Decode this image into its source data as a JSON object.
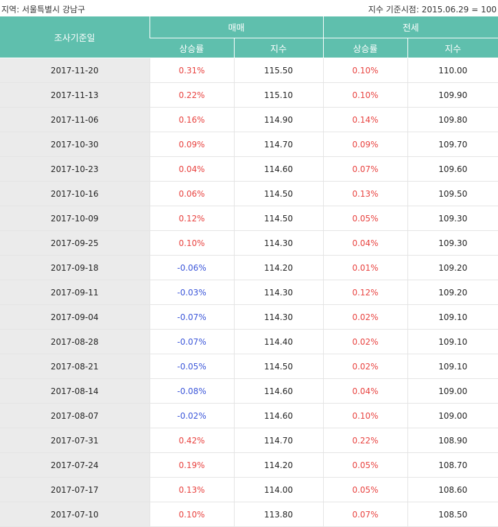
{
  "header": {
    "region": "지역: 서울특별시 강남구",
    "base": "지수 기준시점: 2015.06.29 = 100"
  },
  "columns": {
    "date": "조사기준일",
    "sale": "매매",
    "jeonse": "전세",
    "rate": "상승률",
    "index": "지수"
  },
  "colors": {
    "header_bg": "#5fbfad",
    "positive": "#e8413e",
    "negative": "#3a55d9",
    "date_bg": "#ebebeb"
  },
  "rows": [
    {
      "date": "2017-11-20",
      "sale_rate": "0.31%",
      "sale_index": "115.50",
      "jeonse_rate": "0.10%",
      "jeonse_index": "110.00"
    },
    {
      "date": "2017-11-13",
      "sale_rate": "0.22%",
      "sale_index": "115.10",
      "jeonse_rate": "0.10%",
      "jeonse_index": "109.90"
    },
    {
      "date": "2017-11-06",
      "sale_rate": "0.16%",
      "sale_index": "114.90",
      "jeonse_rate": "0.14%",
      "jeonse_index": "109.80"
    },
    {
      "date": "2017-10-30",
      "sale_rate": "0.09%",
      "sale_index": "114.70",
      "jeonse_rate": "0.09%",
      "jeonse_index": "109.70"
    },
    {
      "date": "2017-10-23",
      "sale_rate": "0.04%",
      "sale_index": "114.60",
      "jeonse_rate": "0.07%",
      "jeonse_index": "109.60"
    },
    {
      "date": "2017-10-16",
      "sale_rate": "0.06%",
      "sale_index": "114.50",
      "jeonse_rate": "0.13%",
      "jeonse_index": "109.50"
    },
    {
      "date": "2017-10-09",
      "sale_rate": "0.12%",
      "sale_index": "114.50",
      "jeonse_rate": "0.05%",
      "jeonse_index": "109.30"
    },
    {
      "date": "2017-09-25",
      "sale_rate": "0.10%",
      "sale_index": "114.30",
      "jeonse_rate": "0.04%",
      "jeonse_index": "109.30"
    },
    {
      "date": "2017-09-18",
      "sale_rate": "-0.06%",
      "sale_index": "114.20",
      "jeonse_rate": "0.01%",
      "jeonse_index": "109.20"
    },
    {
      "date": "2017-09-11",
      "sale_rate": "-0.03%",
      "sale_index": "114.30",
      "jeonse_rate": "0.12%",
      "jeonse_index": "109.20"
    },
    {
      "date": "2017-09-04",
      "sale_rate": "-0.07%",
      "sale_index": "114.30",
      "jeonse_rate": "0.02%",
      "jeonse_index": "109.10"
    },
    {
      "date": "2017-08-28",
      "sale_rate": "-0.07%",
      "sale_index": "114.40",
      "jeonse_rate": "0.02%",
      "jeonse_index": "109.10"
    },
    {
      "date": "2017-08-21",
      "sale_rate": "-0.05%",
      "sale_index": "114.50",
      "jeonse_rate": "0.02%",
      "jeonse_index": "109.10"
    },
    {
      "date": "2017-08-14",
      "sale_rate": "-0.08%",
      "sale_index": "114.60",
      "jeonse_rate": "0.04%",
      "jeonse_index": "109.00"
    },
    {
      "date": "2017-08-07",
      "sale_rate": "-0.02%",
      "sale_index": "114.60",
      "jeonse_rate": "0.10%",
      "jeonse_index": "109.00"
    },
    {
      "date": "2017-07-31",
      "sale_rate": "0.42%",
      "sale_index": "114.70",
      "jeonse_rate": "0.22%",
      "jeonse_index": "108.90"
    },
    {
      "date": "2017-07-24",
      "sale_rate": "0.19%",
      "sale_index": "114.20",
      "jeonse_rate": "0.05%",
      "jeonse_index": "108.70"
    },
    {
      "date": "2017-07-17",
      "sale_rate": "0.13%",
      "sale_index": "114.00",
      "jeonse_rate": "0.05%",
      "jeonse_index": "108.60"
    },
    {
      "date": "2017-07-10",
      "sale_rate": "0.10%",
      "sale_index": "113.80",
      "jeonse_rate": "0.07%",
      "jeonse_index": "108.50"
    }
  ]
}
